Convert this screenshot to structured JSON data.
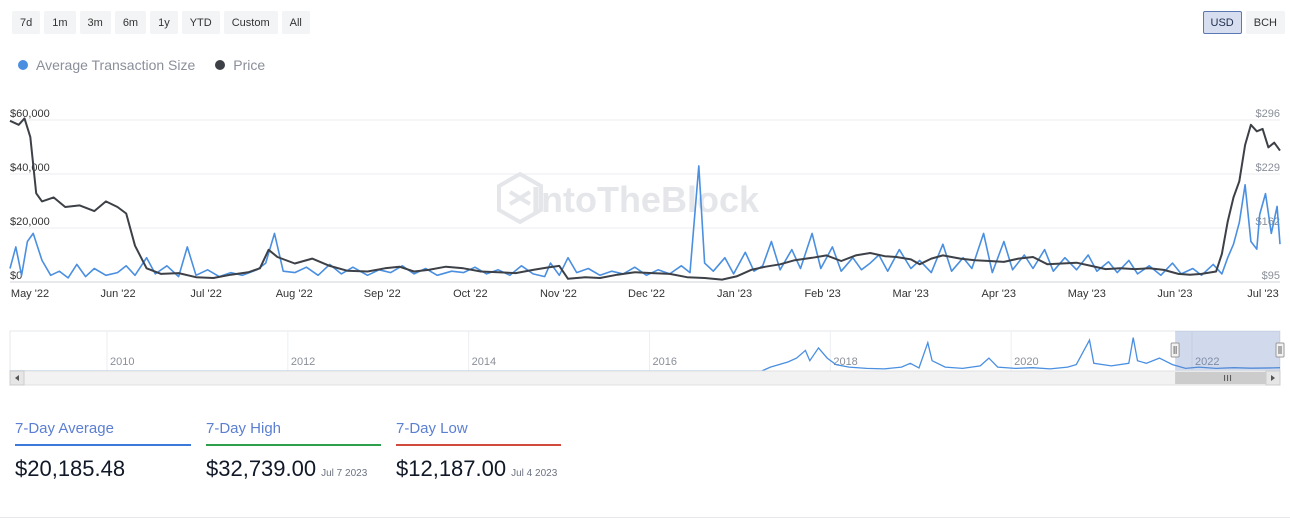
{
  "range_buttons": [
    "7d",
    "1m",
    "3m",
    "6m",
    "1y",
    "YTD",
    "Custom",
    "All"
  ],
  "currency_buttons": [
    {
      "label": "USD",
      "active": true
    },
    {
      "label": "BCH",
      "active": false
    }
  ],
  "legend": [
    {
      "label": "Average Transaction Size",
      "color": "#4a8fe0"
    },
    {
      "label": "Price",
      "color": "#3d4147"
    }
  ],
  "watermark": "IntoTheBlock",
  "chart_data": {
    "type": "line",
    "x_tick_labels": [
      "May '22",
      "Jun '22",
      "Jul '22",
      "Aug '22",
      "Sep '22",
      "Oct '22",
      "Nov '22",
      "Dec '22",
      "Jan '23",
      "Feb '23",
      "Mar '23",
      "Apr '23",
      "May '23",
      "Jun '23",
      "Jul '23"
    ],
    "x_range": [
      "2022-05-01",
      "2023-07-12"
    ],
    "left_axis": {
      "ticks": [
        "$0",
        "$20,000",
        "$40,000",
        "$60,000"
      ],
      "range": [
        0,
        60000
      ]
    },
    "right_axis": {
      "ticks": [
        "$95",
        "$162",
        "$229",
        "$296"
      ],
      "range": [
        95,
        296
      ]
    },
    "grid": true,
    "series": [
      {
        "name": "Average Transaction Size",
        "axis": "left",
        "color": "#4a8fe0",
        "points": [
          [
            "2022-05-01",
            5000
          ],
          [
            "2022-05-03",
            13000
          ],
          [
            "2022-05-05",
            2500
          ],
          [
            "2022-05-07",
            15000
          ],
          [
            "2022-05-09",
            18000
          ],
          [
            "2022-05-12",
            8000
          ],
          [
            "2022-05-15",
            2500
          ],
          [
            "2022-05-18",
            4000
          ],
          [
            "2022-05-21",
            1500
          ],
          [
            "2022-05-24",
            6500
          ],
          [
            "2022-05-27",
            2000
          ],
          [
            "2022-05-30",
            5000
          ],
          [
            "2022-06-03",
            2500
          ],
          [
            "2022-06-07",
            3500
          ],
          [
            "2022-06-10",
            6000
          ],
          [
            "2022-06-13",
            2500
          ],
          [
            "2022-06-17",
            9000
          ],
          [
            "2022-06-20",
            3000
          ],
          [
            "2022-06-24",
            6000
          ],
          [
            "2022-06-28",
            2000
          ],
          [
            "2022-07-01",
            13000
          ],
          [
            "2022-07-04",
            2500
          ],
          [
            "2022-07-08",
            4500
          ],
          [
            "2022-07-12",
            2000
          ],
          [
            "2022-07-16",
            3500
          ],
          [
            "2022-07-20",
            2500
          ],
          [
            "2022-07-25",
            4500
          ],
          [
            "2022-07-28",
            7000
          ],
          [
            "2022-07-31",
            18000
          ],
          [
            "2022-08-03",
            4000
          ],
          [
            "2022-08-07",
            3500
          ],
          [
            "2022-08-11",
            5500
          ],
          [
            "2022-08-15",
            2500
          ],
          [
            "2022-08-19",
            6500
          ],
          [
            "2022-08-23",
            3000
          ],
          [
            "2022-08-27",
            5500
          ],
          [
            "2022-09-01",
            2500
          ],
          [
            "2022-09-05",
            4500
          ],
          [
            "2022-09-09",
            3500
          ],
          [
            "2022-09-13",
            6000
          ],
          [
            "2022-09-17",
            3000
          ],
          [
            "2022-09-21",
            5000
          ],
          [
            "2022-09-25",
            2500
          ],
          [
            "2022-09-30",
            4000
          ],
          [
            "2022-10-04",
            3500
          ],
          [
            "2022-10-08",
            5500
          ],
          [
            "2022-10-12",
            3000
          ],
          [
            "2022-10-16",
            4500
          ],
          [
            "2022-10-20",
            2500
          ],
          [
            "2022-10-24",
            6000
          ],
          [
            "2022-10-28",
            3000
          ],
          [
            "2022-11-01",
            2000
          ],
          [
            "2022-11-03",
            7000
          ],
          [
            "2022-11-06",
            2500
          ],
          [
            "2022-11-09",
            9000
          ],
          [
            "2022-11-12",
            3500
          ],
          [
            "2022-11-16",
            5000
          ],
          [
            "2022-11-20",
            2500
          ],
          [
            "2022-11-24",
            4000
          ],
          [
            "2022-11-28",
            3000
          ],
          [
            "2022-12-02",
            5500
          ],
          [
            "2022-12-06",
            2500
          ],
          [
            "2022-12-10",
            4500
          ],
          [
            "2022-12-14",
            3000
          ],
          [
            "2022-12-18",
            6000
          ],
          [
            "2022-12-21",
            3500
          ],
          [
            "2022-12-24",
            43000
          ],
          [
            "2022-12-26",
            7000
          ],
          [
            "2022-12-29",
            4000
          ],
          [
            "2023-01-02",
            9000
          ],
          [
            "2023-01-05",
            3000
          ],
          [
            "2023-01-09",
            11000
          ],
          [
            "2023-01-12",
            4000
          ],
          [
            "2023-01-15",
            6000
          ],
          [
            "2023-01-18",
            15000
          ],
          [
            "2023-01-21",
            4500
          ],
          [
            "2023-01-25",
            12000
          ],
          [
            "2023-01-28",
            5000
          ],
          [
            "2023-02-01",
            18000
          ],
          [
            "2023-02-04",
            5000
          ],
          [
            "2023-02-08",
            13000
          ],
          [
            "2023-02-11",
            4000
          ],
          [
            "2023-02-15",
            9000
          ],
          [
            "2023-02-18",
            4500
          ],
          [
            "2023-02-21",
            7000
          ],
          [
            "2023-02-24",
            10000
          ],
          [
            "2023-02-27",
            4000
          ],
          [
            "2023-03-03",
            12000
          ],
          [
            "2023-03-07",
            5000
          ],
          [
            "2023-03-10",
            8000
          ],
          [
            "2023-03-14",
            3500
          ],
          [
            "2023-03-18",
            14000
          ],
          [
            "2023-03-21",
            4000
          ],
          [
            "2023-03-25",
            9000
          ],
          [
            "2023-03-28",
            5000
          ],
          [
            "2023-04-01",
            18000
          ],
          [
            "2023-04-04",
            3500
          ],
          [
            "2023-04-08",
            15000
          ],
          [
            "2023-04-11",
            4500
          ],
          [
            "2023-04-15",
            10000
          ],
          [
            "2023-04-18",
            5000
          ],
          [
            "2023-04-22",
            12000
          ],
          [
            "2023-04-25",
            4000
          ],
          [
            "2023-04-29",
            9000
          ],
          [
            "2023-05-03",
            4500
          ],
          [
            "2023-05-07",
            10000
          ],
          [
            "2023-05-10",
            4000
          ],
          [
            "2023-05-14",
            7500
          ],
          [
            "2023-05-17",
            3500
          ],
          [
            "2023-05-21",
            8000
          ],
          [
            "2023-05-24",
            3000
          ],
          [
            "2023-05-28",
            6000
          ],
          [
            "2023-06-01",
            2500
          ],
          [
            "2023-06-05",
            7000
          ],
          [
            "2023-06-08",
            3000
          ],
          [
            "2023-06-12",
            5000
          ],
          [
            "2023-06-15",
            2500
          ],
          [
            "2023-06-19",
            6500
          ],
          [
            "2023-06-22",
            3000
          ],
          [
            "2023-06-24",
            9000
          ],
          [
            "2023-06-26",
            14000
          ],
          [
            "2023-06-28",
            22000
          ],
          [
            "2023-06-30",
            36000
          ],
          [
            "2023-07-02",
            15000
          ],
          [
            "2023-07-04",
            12187
          ],
          [
            "2023-07-05",
            25000
          ],
          [
            "2023-07-07",
            32739
          ],
          [
            "2023-07-09",
            18000
          ],
          [
            "2023-07-11",
            28000
          ],
          [
            "2023-07-12",
            14000
          ]
        ]
      },
      {
        "name": "Price",
        "axis": "right",
        "color": "#3d4147",
        "points": [
          [
            "2022-05-01",
            295
          ],
          [
            "2022-05-04",
            290
          ],
          [
            "2022-05-06",
            298
          ],
          [
            "2022-05-08",
            275
          ],
          [
            "2022-05-10",
            205
          ],
          [
            "2022-05-12",
            195
          ],
          [
            "2022-05-16",
            200
          ],
          [
            "2022-05-20",
            188
          ],
          [
            "2022-05-25",
            190
          ],
          [
            "2022-05-30",
            183
          ],
          [
            "2022-06-03",
            195
          ],
          [
            "2022-06-07",
            188
          ],
          [
            "2022-06-10",
            180
          ],
          [
            "2022-06-13",
            140
          ],
          [
            "2022-06-17",
            112
          ],
          [
            "2022-06-22",
            105
          ],
          [
            "2022-06-28",
            106
          ],
          [
            "2022-07-04",
            101
          ],
          [
            "2022-07-10",
            100
          ],
          [
            "2022-07-16",
            104
          ],
          [
            "2022-07-22",
            107
          ],
          [
            "2022-07-26",
            112
          ],
          [
            "2022-07-29",
            135
          ],
          [
            "2022-08-01",
            126
          ],
          [
            "2022-08-07",
            118
          ],
          [
            "2022-08-13",
            124
          ],
          [
            "2022-08-19",
            115
          ],
          [
            "2022-08-25",
            109
          ],
          [
            "2022-09-01",
            108
          ],
          [
            "2022-09-07",
            112
          ],
          [
            "2022-09-12",
            114
          ],
          [
            "2022-09-17",
            108
          ],
          [
            "2022-09-22",
            110
          ],
          [
            "2022-09-28",
            114
          ],
          [
            "2022-10-04",
            112
          ],
          [
            "2022-10-10",
            108
          ],
          [
            "2022-10-16",
            107
          ],
          [
            "2022-10-22",
            106
          ],
          [
            "2022-10-28",
            110
          ],
          [
            "2022-11-02",
            113
          ],
          [
            "2022-11-06",
            115
          ],
          [
            "2022-11-09",
            99
          ],
          [
            "2022-11-15",
            101
          ],
          [
            "2022-11-20",
            100
          ],
          [
            "2022-11-26",
            104
          ],
          [
            "2022-12-02",
            107
          ],
          [
            "2022-12-08",
            106
          ],
          [
            "2022-12-14",
            105
          ],
          [
            "2022-12-20",
            101
          ],
          [
            "2022-12-26",
            100
          ],
          [
            "2023-01-01",
            98
          ],
          [
            "2023-01-06",
            102
          ],
          [
            "2023-01-11",
            110
          ],
          [
            "2023-01-16",
            114
          ],
          [
            "2023-01-21",
            117
          ],
          [
            "2023-01-26",
            122
          ],
          [
            "2023-02-01",
            125
          ],
          [
            "2023-02-06",
            128
          ],
          [
            "2023-02-11",
            121
          ],
          [
            "2023-02-16",
            128
          ],
          [
            "2023-02-21",
            131
          ],
          [
            "2023-02-26",
            127
          ],
          [
            "2023-03-02",
            126
          ],
          [
            "2023-03-07",
            123
          ],
          [
            "2023-03-10",
            117
          ],
          [
            "2023-03-14",
            124
          ],
          [
            "2023-03-18",
            128
          ],
          [
            "2023-03-24",
            124
          ],
          [
            "2023-03-29",
            122
          ],
          [
            "2023-04-03",
            121
          ],
          [
            "2023-04-08",
            120
          ],
          [
            "2023-04-13",
            124
          ],
          [
            "2023-04-18",
            126
          ],
          [
            "2023-04-23",
            117
          ],
          [
            "2023-04-28",
            118
          ],
          [
            "2023-05-03",
            119
          ],
          [
            "2023-05-08",
            115
          ],
          [
            "2023-05-13",
            111
          ],
          [
            "2023-05-18",
            112
          ],
          [
            "2023-05-23",
            111
          ],
          [
            "2023-05-28",
            112
          ],
          [
            "2023-06-02",
            110
          ],
          [
            "2023-06-07",
            105
          ],
          [
            "2023-06-11",
            104
          ],
          [
            "2023-06-15",
            105
          ],
          [
            "2023-06-20",
            108
          ],
          [
            "2023-06-22",
            130
          ],
          [
            "2023-06-24",
            170
          ],
          [
            "2023-06-26",
            200
          ],
          [
            "2023-06-28",
            220
          ],
          [
            "2023-06-30",
            265
          ],
          [
            "2023-07-02",
            290
          ],
          [
            "2023-07-04",
            282
          ],
          [
            "2023-07-06",
            285
          ],
          [
            "2023-07-08",
            262
          ],
          [
            "2023-07-10",
            268
          ],
          [
            "2023-07-12",
            258
          ]
        ]
      }
    ]
  },
  "navigator": {
    "year_labels": [
      "2010",
      "2012",
      "2014",
      "2016",
      "2018",
      "2020",
      "2022"
    ],
    "x_range": [
      2009.0,
      2023.53
    ],
    "selection": [
      2022.33,
      2023.53
    ],
    "mini_series": [
      [
        2009.0,
        0
      ],
      [
        2017.6,
        0
      ],
      [
        2017.7,
        1.5
      ],
      [
        2017.9,
        3.5
      ],
      [
        2018.0,
        5
      ],
      [
        2018.1,
        8
      ],
      [
        2018.15,
        4
      ],
      [
        2018.25,
        9
      ],
      [
        2018.35,
        5
      ],
      [
        2018.45,
        2.5
      ],
      [
        2018.6,
        1.5
      ],
      [
        2018.8,
        1
      ],
      [
        2019.0,
        0.8
      ],
      [
        2019.2,
        1.5
      ],
      [
        2019.3,
        3
      ],
      [
        2019.4,
        1.2
      ],
      [
        2019.5,
        11
      ],
      [
        2019.55,
        4
      ],
      [
        2019.7,
        1.5
      ],
      [
        2019.9,
        1
      ],
      [
        2020.1,
        2
      ],
      [
        2020.2,
        5
      ],
      [
        2020.3,
        1.5
      ],
      [
        2020.5,
        1
      ],
      [
        2020.7,
        1.3
      ],
      [
        2020.9,
        0.8
      ],
      [
        2021.1,
        1.5
      ],
      [
        2021.2,
        2.5
      ],
      [
        2021.35,
        12
      ],
      [
        2021.4,
        3
      ],
      [
        2021.6,
        2
      ],
      [
        2021.8,
        3
      ],
      [
        2021.85,
        13
      ],
      [
        2021.9,
        4
      ],
      [
        2022.0,
        3
      ],
      [
        2022.15,
        5
      ],
      [
        2022.3,
        2.5
      ],
      [
        2022.45,
        1
      ],
      [
        2022.6,
        1.5
      ],
      [
        2022.8,
        1
      ],
      [
        2023.0,
        1.3
      ],
      [
        2023.2,
        1.1
      ],
      [
        2023.45,
        1.2
      ],
      [
        2023.53,
        1.3
      ]
    ]
  },
  "stats": [
    {
      "label": "7-Day Average",
      "value": "$20,185.48",
      "date": "",
      "color": "#3b7ad9"
    },
    {
      "label": "7-Day High",
      "value": "$32,739.00",
      "date": "Jul 7 2023",
      "color": "#2e9f4a"
    },
    {
      "label": "7-Day Low",
      "value": "$12,187.00",
      "date": "Jul 4 2023",
      "color": "#d24a3b"
    }
  ]
}
